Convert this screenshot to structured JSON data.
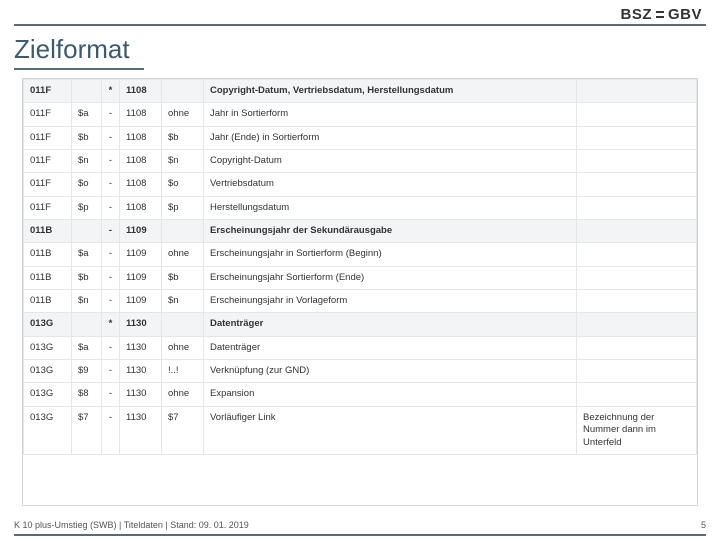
{
  "logo": {
    "left": "BSZ",
    "right": "GBV"
  },
  "title": "Zielformat",
  "footer": {
    "text": "K 10 plus-Umstieg (SWB) | Titeldaten | Stand: 09. 01. 2019",
    "page": "5"
  },
  "table": {
    "columns": [
      "c1",
      "c2",
      "c3",
      "c4",
      "c5",
      "c6",
      "c7"
    ],
    "rows": [
      {
        "header": true,
        "cells": [
          "011F",
          "",
          "*",
          "1108",
          "",
          "Copyright-Datum, Vertriebsdatum, Herstellungsdatum",
          ""
        ]
      },
      {
        "header": false,
        "cells": [
          "011F",
          "$a",
          "-",
          "1108",
          "ohne",
          "Jahr in Sortierform",
          ""
        ]
      },
      {
        "header": false,
        "cells": [
          "011F",
          "$b",
          "-",
          "1108",
          "$b",
          "Jahr (Ende) in Sortierform",
          ""
        ]
      },
      {
        "header": false,
        "cells": [
          "011F",
          "$n",
          "-",
          "1108",
          "$n",
          "Copyright-Datum",
          ""
        ]
      },
      {
        "header": false,
        "cells": [
          "011F",
          "$o",
          "-",
          "1108",
          "$o",
          "Vertriebsdatum",
          ""
        ]
      },
      {
        "header": false,
        "cells": [
          "011F",
          "$p",
          "-",
          "1108",
          "$p",
          "Herstellungsdatum",
          ""
        ]
      },
      {
        "header": true,
        "cells": [
          "011B",
          "",
          "-",
          "1109",
          "",
          "Erscheinungsjahr der Sekundärausgabe",
          ""
        ]
      },
      {
        "header": false,
        "cells": [
          "011B",
          "$a",
          "-",
          "1109",
          "ohne",
          "Erscheinungsjahr in Sortierform (Beginn)",
          ""
        ]
      },
      {
        "header": false,
        "cells": [
          "011B",
          "$b",
          "-",
          "1109",
          "$b",
          "Erscheinungsjahr Sortierform (Ende)",
          ""
        ]
      },
      {
        "header": false,
        "cells": [
          "011B",
          "$n",
          "-",
          "1109",
          "$n",
          "Erscheinungsjahr in Vorlageform",
          ""
        ]
      },
      {
        "header": true,
        "cells": [
          "013G",
          "",
          "*",
          "1130",
          "",
          "Datenträger",
          ""
        ]
      },
      {
        "header": false,
        "cells": [
          "013G",
          "$a",
          "-",
          "1130",
          "ohne",
          "Datenträger",
          ""
        ]
      },
      {
        "header": false,
        "cells": [
          "013G",
          "$9",
          "-",
          "1130",
          "!..!",
          "Verknüpfung (zur GND)",
          ""
        ]
      },
      {
        "header": false,
        "cells": [
          "013G",
          "$8",
          "-",
          "1130",
          "ohne",
          "Expansion",
          ""
        ]
      },
      {
        "header": false,
        "cells": [
          "013G",
          "$7",
          "-",
          "1130",
          "$7",
          "Vorläufiger Link",
          "Bezeichnung der Nummer dann im Unterfeld"
        ]
      }
    ]
  }
}
